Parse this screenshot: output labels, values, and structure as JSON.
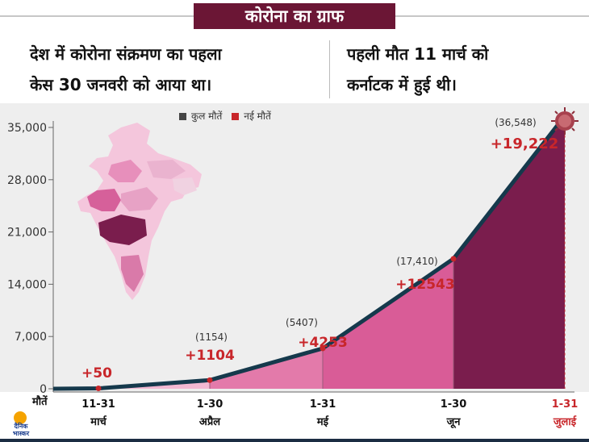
{
  "header": {
    "title": "कोरोना का ग्राफ"
  },
  "facts": {
    "left_line1": "देश में कोरोना संक्रमण का पहला",
    "left_line2": "केस 30 जनवरी को आया था।",
    "right_line1": "पहली मौत 11 मार्च को",
    "right_line2": "कर्नाटक में हुई थी।"
  },
  "legend": {
    "total_label": "कुल मौतें",
    "new_label": "नई मौतें"
  },
  "x_axis_label": "मौतें",
  "branding": {
    "logo_line1": "दैनिक",
    "logo_line2": "भास्कर"
  },
  "colors": {
    "title_bg": "#6b1635",
    "line": "#15394c",
    "new_deaths": "#c8262a",
    "area_light": "#f2b8d2",
    "area_mid": "#e37aaa",
    "area_dark": "#d95c97",
    "area_last": "#7a1d4d",
    "month_last": "#c8262a"
  },
  "chart_data": {
    "type": "area",
    "title": "कोरोना का ग्राफ",
    "xlabel": "मौतें",
    "ylabel": "",
    "ylim": [
      0,
      35000
    ],
    "yticks": [
      0,
      7000,
      14000,
      21000,
      28000,
      35000
    ],
    "ytick_labels": [
      "0",
      "7,000",
      "14,000",
      "21,000",
      "28,000",
      "35,000"
    ],
    "grid": false,
    "legend_position": "top-center",
    "categories": [
      {
        "date": "11-31",
        "month": "मार्च"
      },
      {
        "date": "1-30",
        "month": "अप्रैल"
      },
      {
        "date": "1-31",
        "month": "मई"
      },
      {
        "date": "1-30",
        "month": "जून"
      },
      {
        "date": "1-31",
        "month": "जुलाई"
      }
    ],
    "series": [
      {
        "name": "कुल मौतें",
        "values": [
          50,
          1154,
          5407,
          17410,
          36548
        ],
        "value_labels": [
          "",
          "(1154)",
          "(5407)",
          "(17,410)",
          "(36,548)"
        ]
      },
      {
        "name": "नई मौतें",
        "values": [
          50,
          1104,
          4253,
          12543,
          19222
        ],
        "value_labels": [
          "+50",
          "+1104",
          "+4253",
          "+12543",
          "+19,222"
        ]
      }
    ]
  }
}
